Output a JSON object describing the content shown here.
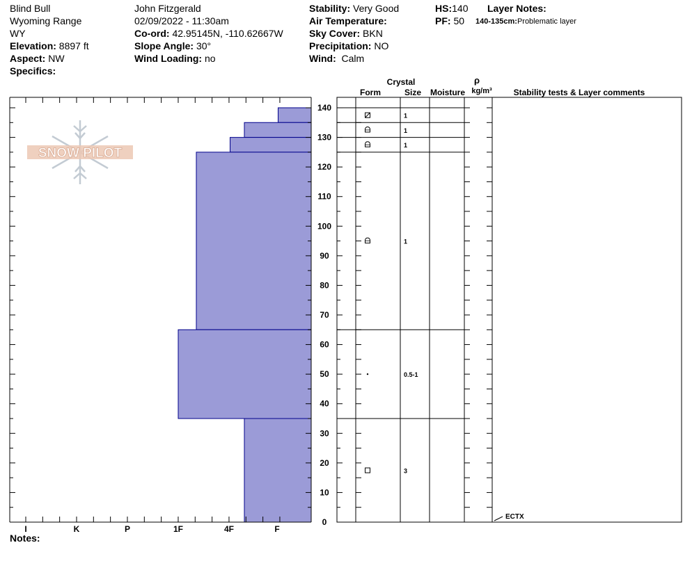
{
  "header": {
    "location": [
      "Blind Bull",
      "Wyoming Range",
      "WY"
    ],
    "elevation_label": "Elevation:",
    "elevation": "8897 ft",
    "aspect_label": "Aspect:",
    "aspect": "NW",
    "specifics_label": "Specifics:",
    "observer": "John Fitzgerald",
    "datetime": "02/09/2022 - 11:30am",
    "coord_label": "Co-ord:",
    "coord": "42.95145N, -110.62667W",
    "slope_label": "Slope Angle:",
    "slope": "30°",
    "wind_loading_label": "Wind Loading:",
    "wind_loading": "no",
    "stability_label": "Stability:",
    "stability": "Very Good",
    "air_temp_label": "Air Temperature:",
    "sky_label": "Sky Cover:",
    "sky": "BKN",
    "precip_label": "Precipitation:",
    "precip": "NO",
    "wind_label": "Wind:",
    "wind": "Calm",
    "hs_label": "HS:",
    "hs": "140",
    "pf_label": "PF:",
    "pf": "50",
    "layer_notes_label": "Layer Notes:",
    "layer_note_range": "140-135cm:",
    "layer_note_text": "Problematic layer",
    "notes_label": "Notes:"
  },
  "logo_text": "SNOW PILOT",
  "columns": {
    "crystal": "Crystal",
    "form": "Form",
    "size": "Size",
    "moisture": "Moisture",
    "rho": "ρ",
    "density_unit": "kg/m³",
    "stability": "Stability tests & Layer comments"
  },
  "chart_data": {
    "type": "bar",
    "title": "",
    "xlabel": "",
    "ylabel": "",
    "hardness_scale": [
      "I",
      "K",
      "P",
      "1F",
      "4F",
      "F"
    ],
    "y_ticks": [
      0,
      10,
      20,
      30,
      40,
      50,
      60,
      70,
      80,
      90,
      100,
      110,
      120,
      130,
      140
    ],
    "ylim": [
      0,
      143
    ],
    "layers": [
      {
        "top": 140,
        "bottom": 135,
        "hardness": "F-",
        "form": "ppgp",
        "size": "1"
      },
      {
        "top": 135,
        "bottom": 130,
        "hardness": "F+",
        "form": "dfdc",
        "size": "1"
      },
      {
        "top": 130,
        "bottom": 125,
        "hardness": "4F-",
        "form": "dfdc",
        "size": "1"
      },
      {
        "top": 125,
        "bottom": 65,
        "hardness": "4F+",
        "form": "dfdc",
        "size": "1"
      },
      {
        "top": 65,
        "bottom": 35,
        "hardness": "1F",
        "form": "rg",
        "size": "0.5-1"
      },
      {
        "top": 35,
        "bottom": 0,
        "hardness": "F+",
        "form": "fc",
        "size": "3"
      }
    ],
    "stability_tests": [
      {
        "depth": 0,
        "label": "ECTX"
      }
    ],
    "colors": {
      "layer_fill": "#9b9bd7",
      "layer_stroke": "#00008b"
    }
  }
}
